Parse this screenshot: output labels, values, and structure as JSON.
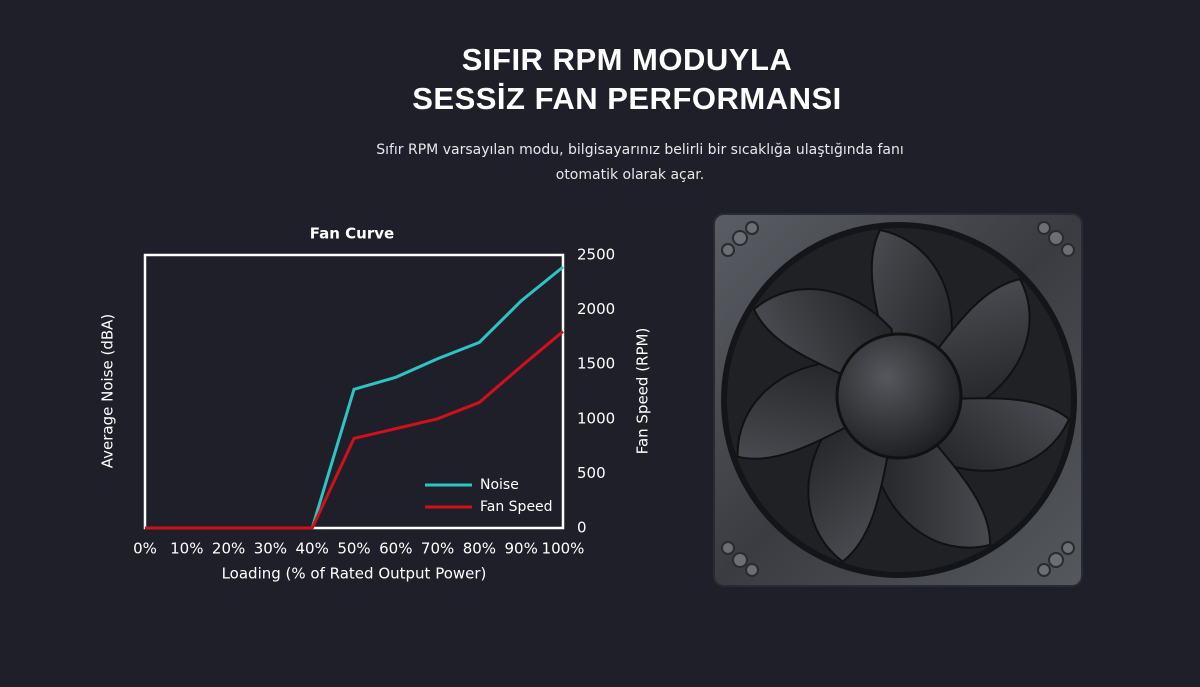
{
  "header": {
    "title_lines": [
      "SIFIR RPM MODUYLA",
      "SESSİZ FAN PERFORMANSI"
    ],
    "description_lines": [
      "Sıfır RPM varsayılan modu, bilgisayarınız belirli bir sıcaklığa ulaştığında fanı",
      "otomatik olarak açar."
    ]
  },
  "chart_data": {
    "type": "line",
    "title": "Fan Curve",
    "x_label": "Loading (% of Rated Output Power)",
    "y_label": "Average Noise (dBA)",
    "y2_label": "Fan Speed (RPM)",
    "categories": [
      "0%",
      "10%",
      "20%",
      "30%",
      "40%",
      "50%",
      "60%",
      "70%",
      "80%",
      "90%",
      "100%"
    ],
    "series": [
      {
        "name": "Noise",
        "color": "#2ec4c4",
        "axis": "y2",
        "values": [
          0,
          0,
          0,
          0,
          0,
          1270,
          1380,
          1550,
          1700,
          2080,
          2390
        ]
      },
      {
        "name": "Fan Speed",
        "color": "#d0101c",
        "axis": "y2",
        "values": [
          0,
          0,
          0,
          0,
          0,
          820,
          910,
          1000,
          1150,
          1480,
          1800
        ]
      }
    ],
    "y2lim": [
      0,
      2500
    ],
    "y2ticks": [
      0,
      500,
      1000,
      1500,
      2000,
      2500
    ],
    "grid": false,
    "legend": "lower right"
  }
}
